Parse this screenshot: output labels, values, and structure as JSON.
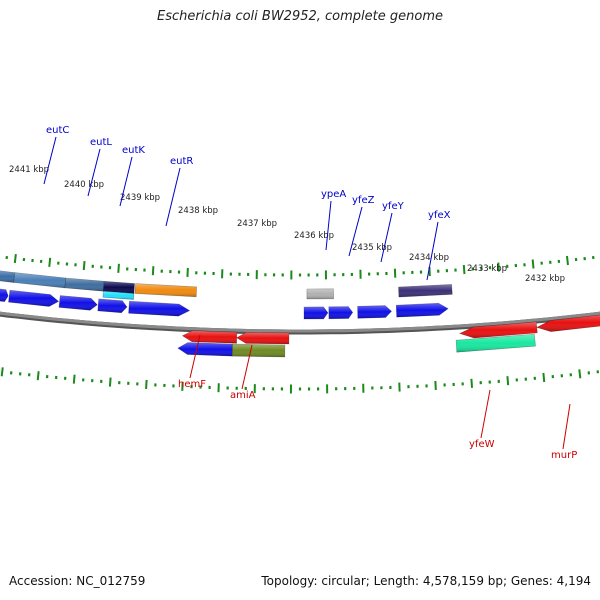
{
  "title": "Escherichia coli BW2952, complete genome",
  "accession": "Accession: NC_012759",
  "topology": "Topology: circular; Length: 4,578,159 bp; Genes: 4,194",
  "scale_ticks": [
    "2441 kbp",
    "2440 kbp",
    "2439 kbp",
    "2438 kbp",
    "2437 kbp",
    "2436 kbp",
    "2435 kbp",
    "2434 kbp",
    "2433 kbp",
    "2432 kbp"
  ],
  "labeled_genes": [
    {
      "name": "eutC",
      "strand": "plus",
      "color": "#0000cc"
    },
    {
      "name": "eutL",
      "strand": "plus",
      "color": "#0000cc"
    },
    {
      "name": "eutK",
      "strand": "plus",
      "color": "#0000cc"
    },
    {
      "name": "eutR",
      "strand": "plus",
      "color": "#0000cc"
    },
    {
      "name": "ypeA",
      "strand": "plus",
      "color": "#0000cc"
    },
    {
      "name": "yfeZ",
      "strand": "plus",
      "color": "#0000cc"
    },
    {
      "name": "yfeY",
      "strand": "plus",
      "color": "#0000cc"
    },
    {
      "name": "yfeX",
      "strand": "plus",
      "color": "#0000cc"
    },
    {
      "name": "hemF",
      "strand": "minus",
      "color": "#cc0000"
    },
    {
      "name": "amiA",
      "strand": "minus",
      "color": "#cc0000"
    },
    {
      "name": "yfeW",
      "strand": "minus",
      "color": "#cc0000"
    },
    {
      "name": "murP",
      "strand": "minus",
      "color": "#cc0000"
    }
  ],
  "colors": {
    "backbone": "#8a8a8a",
    "tick": "#1a8a1a",
    "cds_blue": "#1010e8",
    "gene_red": "#e81010"
  }
}
